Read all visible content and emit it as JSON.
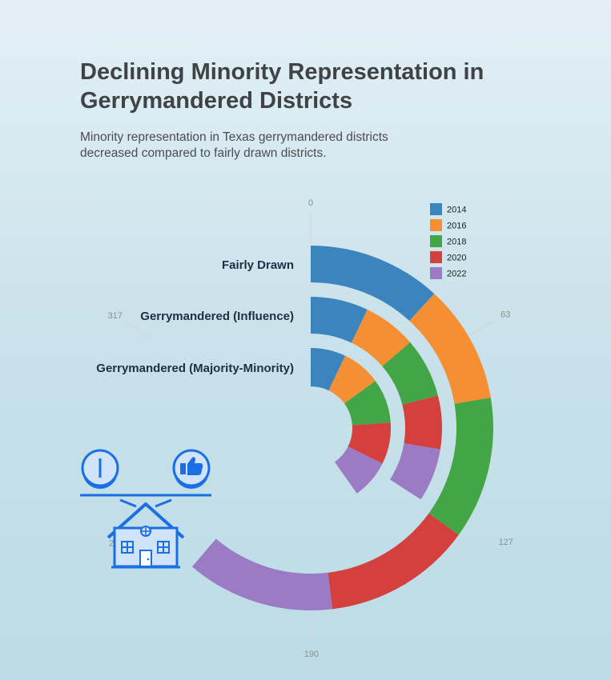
{
  "header": {
    "title": "Declining Minority Representation in Gerrymandered Districts",
    "subtitle": "Minority representation in Texas gerrymandered districts decreased compared to fairly drawn districts."
  },
  "chart_data": {
    "type": "radial-stacked-bar",
    "axis_max": 317,
    "ticks": [
      0,
      63,
      127,
      190,
      253,
      317
    ],
    "categories": [
      "Fairly Drawn",
      "Gerrymandered (Influence)",
      "Gerrymandered (Majority-Minority)"
    ],
    "series": [
      {
        "name": "2014",
        "color": "#3b84bd",
        "values": [
          45,
          27,
          27
        ]
      },
      {
        "name": "2016",
        "color": "#f48f34",
        "values": [
          40,
          25,
          30
        ]
      },
      {
        "name": "2018",
        "color": "#42a646",
        "values": [
          48,
          28,
          34
        ]
      },
      {
        "name": "2020",
        "color": "#d4403d",
        "values": [
          50,
          25,
          32
        ]
      },
      {
        "name": "2022",
        "color": "#9c7bc5",
        "values": [
          50,
          25,
          30
        ]
      }
    ],
    "legend_position": "top-right",
    "gridlines": false
  },
  "icon": {
    "name": "house-balance-icon"
  }
}
